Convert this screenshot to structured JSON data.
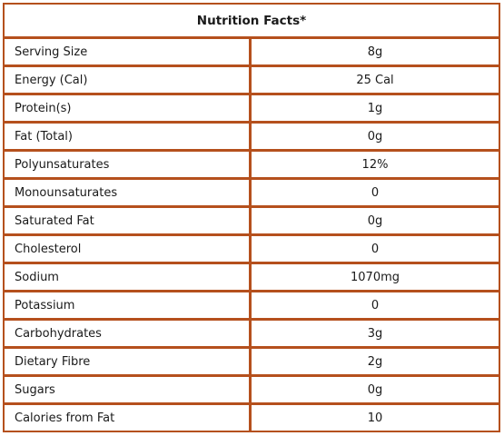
{
  "table": {
    "title": "Nutrition Facts*",
    "rows": [
      {
        "label": "Serving Size",
        "value": "8g"
      },
      {
        "label": "Energy (Cal)",
        "value": "25 Cal"
      },
      {
        "label": "Protein(s)",
        "value": "1g"
      },
      {
        "label": "Fat (Total)",
        "value": "0g"
      },
      {
        "label": "Polyunsaturates",
        "value": "12%"
      },
      {
        "label": "Monounsaturates",
        "value": "0"
      },
      {
        "label": "Saturated Fat",
        "value": "0g"
      },
      {
        "label": "Cholesterol",
        "value": "0"
      },
      {
        "label": "Sodium",
        "value": "1070mg"
      },
      {
        "label": "Potassium",
        "value": "0"
      },
      {
        "label": "Carbohydrates",
        "value": "3g"
      },
      {
        "label": "Dietary Fibre",
        "value": "2g"
      },
      {
        "label": "Sugars",
        "value": "0g"
      },
      {
        "label": "Calories from Fat",
        "value": "10"
      }
    ]
  },
  "colors": {
    "border": "#b5501d"
  }
}
